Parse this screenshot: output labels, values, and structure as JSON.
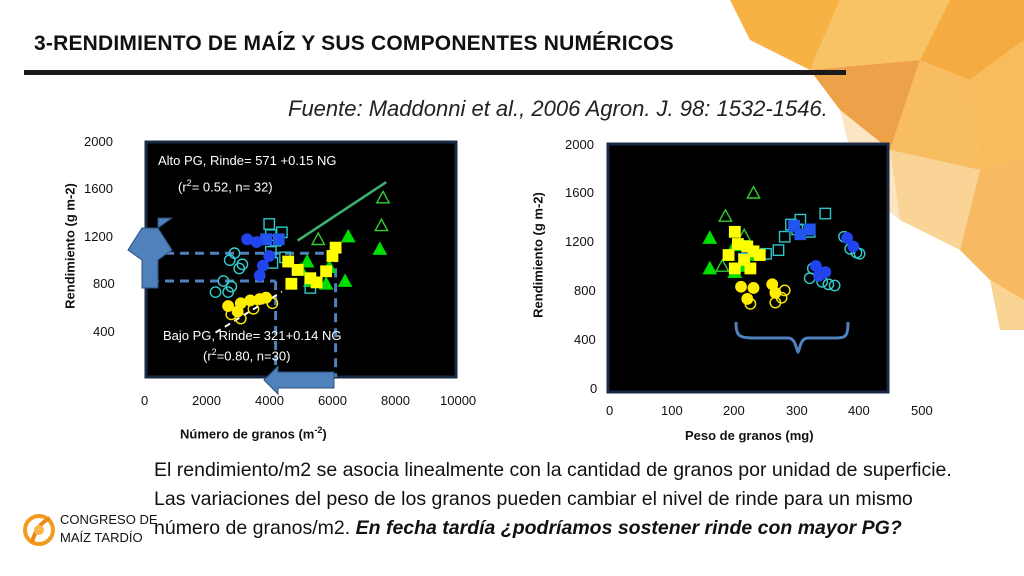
{
  "slide": {
    "title": "3-RENDIMIENTO DE MAÍZ Y SUS COMPONENTES NUMÉRICOS",
    "source": "Fuente: Maddonni et al., 2006 Agron. J. 98: 1532-1546.",
    "body_line1": "El rendimiento/m2 se asocia linealmente con la cantidad de granos por unidad de superficie.",
    "body_line2": "Las variaciones del peso de los granos pueden cambiar el nivel de rinde para un mismo",
    "body_line3_plain": "número de granos/m2. ",
    "body_line3_emph": "En fecha tardía ¿podríamos sostener rinde con mayor PG?",
    "logo_line1": "CONGRESO DE",
    "logo_line2": "MAÍZ TARDÍO",
    "colors": {
      "accent_orange": "#f39c1f",
      "plot_bg": "#000000",
      "arrow_blue": "#4f81bd"
    }
  },
  "chart_data": [
    {
      "type": "scatter",
      "xlabel_main": "Número de granos (m",
      "xlabel_sup": "-2",
      "xlabel_end": ")",
      "ylabel": "Rendimiento (g m-2)",
      "xlim": [
        0,
        10000
      ],
      "ylim": [
        0,
        2000
      ],
      "x_ticks": [
        "0",
        "2000",
        "4000",
        "6000",
        "8000",
        "10000"
      ],
      "y_ticks": [
        "2000",
        "1600",
        "1200",
        "800",
        "400"
      ],
      "ann_high_1": "Alto PG, Rinde= 571 +0.15 NG",
      "ann_high_2a": "(r",
      "ann_high_2b": "2",
      "ann_high_2c": "= 0.52, n= 32)",
      "ann_low_1": "Bajo PG, Rinde= 321+0.14 NG",
      "ann_low_2a": "(r",
      "ann_low_2b": "2",
      "ann_low_2c": "=0.80, n=30)",
      "reference_lines": {
        "x": 6000,
        "y_high": 1200,
        "y_low": 1000
      },
      "regression_high": {
        "intercept": 571,
        "slope": 0.15
      },
      "regression_low": {
        "intercept": 321,
        "slope": 0.14
      },
      "series": [
        {
          "marker": "triangle-open",
          "color": "#33cc33",
          "points": [
            [
              7500,
              1600
            ],
            [
              7450,
              1400
            ],
            [
              5450,
              1300
            ]
          ]
        },
        {
          "marker": "triangle-filled",
          "color": "#00dd00",
          "points": [
            [
              6400,
              1320
            ],
            [
              5100,
              1140
            ],
            [
              5800,
              1100
            ],
            [
              5200,
              1000
            ],
            [
              5700,
              980
            ],
            [
              7400,
              1230
            ],
            [
              6300,
              1000
            ],
            [
              4900,
              1080
            ]
          ]
        },
        {
          "marker": "square-open",
          "color": "#2ec7c9",
          "points": [
            [
              3900,
              1410
            ],
            [
              3950,
              1330
            ],
            [
              4300,
              1350
            ],
            [
              4100,
              1290
            ],
            [
              3950,
              1210
            ],
            [
              4400,
              1170
            ],
            [
              4000,
              1130
            ],
            [
              4800,
              1080
            ],
            [
              5200,
              950
            ]
          ]
        },
        {
          "marker": "square-filled",
          "color": "#2255ee",
          "points": [
            [
              3800,
              1300
            ],
            [
              4200,
              1300
            ]
          ]
        },
        {
          "marker": "square-filled",
          "color": "#ffff00",
          "points": [
            [
              4500,
              1140
            ],
            [
              4800,
              1080
            ],
            [
              5200,
              1020
            ],
            [
              5400,
              990
            ],
            [
              5700,
              1070
            ],
            [
              5900,
              1180
            ],
            [
              6000,
              1240
            ],
            [
              4600,
              980
            ]
          ]
        },
        {
          "marker": "circle-open",
          "color": "#33cccc",
          "points": [
            [
              2800,
              1200
            ],
            [
              2650,
              1150
            ],
            [
              3050,
              1120
            ],
            [
              2450,
              1000
            ],
            [
              2700,
              960
            ],
            [
              2600,
              920
            ],
            [
              2200,
              920
            ],
            [
              2950,
              1090
            ]
          ]
        },
        {
          "marker": "circle-filled",
          "color": "#2244ee",
          "points": [
            [
              3200,
              1300
            ],
            [
              3500,
              1280
            ],
            [
              3900,
              1180
            ],
            [
              3700,
              1110
            ],
            [
              3600,
              1040
            ]
          ]
        },
        {
          "marker": "circle-filled",
          "color": "#ffee00",
          "points": [
            [
              2600,
              820
            ],
            [
              3000,
              840
            ],
            [
              3300,
              860
            ],
            [
              3600,
              870
            ],
            [
              2900,
              780
            ],
            [
              3800,
              880
            ]
          ]
        },
        {
          "marker": "circle-open",
          "color": "#ffee00",
          "points": [
            [
              2700,
              760
            ],
            [
              3000,
              730
            ],
            [
              3400,
              800
            ],
            [
              4000,
              840
            ]
          ]
        }
      ]
    },
    {
      "type": "scatter",
      "xlabel": "Peso de granos (mg)",
      "ylabel": "Rendimiento (g m-2)",
      "xlim": [
        0,
        500
      ],
      "ylim": [
        0,
        2000
      ],
      "x_ticks": [
        "0",
        "100",
        "200",
        "300",
        "400",
        "500"
      ],
      "y_ticks": [
        "2000",
        "1600",
        "1200",
        "800",
        "400",
        "0"
      ],
      "series": [
        {
          "marker": "triangle-open",
          "color": "#33cc33",
          "points": [
            [
              230,
              1600
            ],
            [
              185,
              1410
            ],
            [
              215,
              1250
            ],
            [
              180,
              1000
            ]
          ]
        },
        {
          "marker": "triangle-filled",
          "color": "#00dd00",
          "points": [
            [
              160,
              1230
            ],
            [
              200,
              1170
            ],
            [
              230,
              1090
            ],
            [
              210,
              1000
            ],
            [
              160,
              980
            ],
            [
              200,
              950
            ]
          ]
        },
        {
          "marker": "square-open",
          "color": "#2ec7c9",
          "points": [
            [
              345,
              1430
            ],
            [
              305,
              1380
            ],
            [
              290,
              1340
            ],
            [
              300,
              1300
            ],
            [
              320,
              1280
            ],
            [
              280,
              1240
            ],
            [
              270,
              1130
            ],
            [
              250,
              1100
            ],
            [
              215,
              1060
            ]
          ]
        },
        {
          "marker": "square-filled",
          "color": "#2255ee",
          "points": [
            [
              295,
              1330
            ],
            [
              305,
              1260
            ],
            [
              320,
              1300
            ]
          ]
        },
        {
          "marker": "square-filled",
          "color": "#ffff00",
          "points": [
            [
              200,
              1280
            ],
            [
              205,
              1180
            ],
            [
              220,
              1160
            ],
            [
              230,
              1120
            ],
            [
              190,
              1090
            ],
            [
              215,
              1050
            ],
            [
              240,
              1090
            ],
            [
              200,
              980
            ],
            [
              225,
              980
            ]
          ]
        },
        {
          "marker": "circle-open",
          "color": "#33cccc",
          "points": [
            [
              375,
              1240
            ],
            [
              385,
              1140
            ],
            [
              395,
              1110
            ],
            [
              400,
              1100
            ],
            [
              325,
              980
            ],
            [
              320,
              900
            ],
            [
              340,
              870
            ],
            [
              350,
              850
            ],
            [
              360,
              840
            ]
          ]
        },
        {
          "marker": "circle-filled",
          "color": "#2244ee",
          "points": [
            [
              380,
              1230
            ],
            [
              390,
              1160
            ],
            [
              330,
              1000
            ],
            [
              345,
              950
            ],
            [
              335,
              920
            ]
          ]
        },
        {
          "marker": "circle-filled",
          "color": "#ffee00",
          "points": [
            [
              210,
              830
            ],
            [
              230,
              820
            ],
            [
              260,
              850
            ],
            [
              265,
              780
            ],
            [
              220,
              730
            ]
          ]
        },
        {
          "marker": "circle-open",
          "color": "#ffee00",
          "points": [
            [
              225,
              690
            ],
            [
              265,
              700
            ],
            [
              275,
              740
            ],
            [
              280,
              800
            ]
          ]
        }
      ]
    }
  ]
}
